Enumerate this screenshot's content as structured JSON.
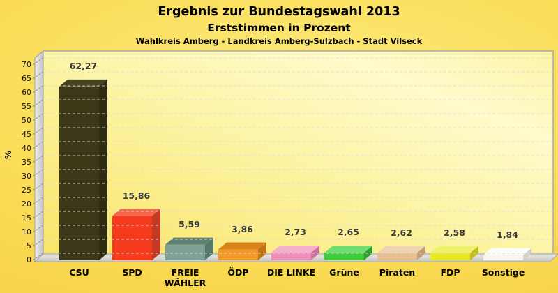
{
  "header": {
    "title_line1": "Ergebnis zur Bundestagswahl 2013",
    "title_line2": "Erststimmen in Prozent",
    "subtitle": "Wahlkreis Amberg - Landkreis Amberg-Sulzbach - Stadt Vilseck"
  },
  "chart_data": {
    "type": "bar",
    "title": "Ergebnis zur Bundestagswahl 2013 - Erststimmen in Prozent",
    "subtitle": "Wahlkreis Amberg - Landkreis Amberg-Sulzbach - Stadt Vilseck",
    "xlabel": "",
    "ylabel": "%",
    "ylim": [
      0,
      70
    ],
    "ytick_step": 5,
    "yticks": [
      0,
      5,
      10,
      15,
      20,
      25,
      30,
      35,
      40,
      45,
      50,
      55,
      60,
      65,
      70
    ],
    "grid": "horizontal-dashed",
    "legend_position": "none",
    "style_3d": true,
    "categories": [
      "CSU",
      "SPD",
      "FREIE WÄHLER",
      "ÖDP",
      "DIE LINKE",
      "Grüne",
      "Piraten",
      "FDP",
      "Sonstige"
    ],
    "category_lines": [
      [
        "CSU"
      ],
      [
        "SPD"
      ],
      [
        "FREIE",
        "WÄHLER"
      ],
      [
        "ÖDP"
      ],
      [
        "DIE LINKE"
      ],
      [
        "Grüne"
      ],
      [
        "Piraten"
      ],
      [
        "FDP"
      ],
      [
        "Sonstige"
      ]
    ],
    "values": [
      62.27,
      15.86,
      5.59,
      3.86,
      2.73,
      2.65,
      2.62,
      2.58,
      1.84
    ],
    "value_labels": [
      "62,27",
      "15,86",
      "5,59",
      "3,86",
      "2,73",
      "2,65",
      "2,62",
      "2,58",
      "1,84"
    ],
    "bar_colors": [
      {
        "front": "#3C3817",
        "top": "#474322",
        "side": "#2F2B10"
      },
      {
        "front": "#F63A1E",
        "top": "#F8664C",
        "side": "#C33A22"
      },
      {
        "front": "#7FA096",
        "top": "#5F8070",
        "side": "#55786C"
      },
      {
        "front": "#F49A28",
        "top": "#D8831A",
        "side": "#BE6F10"
      },
      {
        "front": "#EF8FBB",
        "top": "#F3AFCC",
        "side": "#CB6F9E"
      },
      {
        "front": "#3ECB3E",
        "top": "#71DE71",
        "side": "#2B9E2B"
      },
      {
        "front": "#E5BE92",
        "top": "#EED4B2",
        "side": "#C49C72"
      },
      {
        "front": "#E9E922",
        "top": "#F0F06A",
        "side": "#BFBF17"
      },
      {
        "front": "#F7F7EF",
        "top": "#FDFDF8",
        "side": "#D2D2C8"
      }
    ]
  },
  "colors": {
    "background_outer": "#FADC55",
    "background_wall": "#FCF6A0",
    "wall_border": "#A9A9A9",
    "left_wall": "#D5D5D5",
    "floor": "#D8D8D4",
    "gridline": "#D8D8D8",
    "value_label_text": "#3A3A3A",
    "axis_text": "#000000"
  }
}
